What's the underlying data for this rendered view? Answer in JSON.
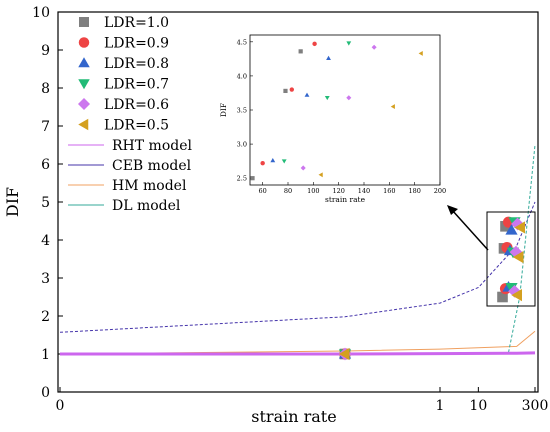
{
  "chart_data": {
    "type": "scatter",
    "title": "",
    "xlabel": "strain rate",
    "ylabel": "DIF",
    "ylim": [
      0,
      10
    ],
    "y_ticks": [
      "0",
      "1",
      "2",
      "3",
      "4",
      "5",
      "6",
      "7",
      "8",
      "9",
      "10"
    ],
    "x_ticks": [
      {
        "label": "0",
        "value": 0
      },
      {
        "label": "1",
        "value": 1
      },
      {
        "label": "10",
        "value": 10
      },
      {
        "label": "300",
        "value": 300
      }
    ],
    "x_scale": "broken-log",
    "legend_position": "top-left",
    "series": [
      {
        "name": "LDR=1.0",
        "marker": "square",
        "color": "#7f7f7f",
        "points": [
          [
            0.0001,
            1.0
          ],
          [
            52,
            2.5
          ],
          [
            78,
            3.78
          ],
          [
            90,
            4.36
          ]
        ]
      },
      {
        "name": "LDR=0.9",
        "marker": "circle",
        "color": "#ee4444",
        "points": [
          [
            0.0001,
            1.0
          ],
          [
            60,
            2.72
          ],
          [
            83,
            3.8
          ],
          [
            101,
            4.47
          ]
        ]
      },
      {
        "name": "LDR=0.8",
        "marker": "triangle-up",
        "color": "#3366cc",
        "points": [
          [
            0.0001,
            1.0
          ],
          [
            68,
            2.76
          ],
          [
            95,
            3.72
          ],
          [
            112,
            4.26
          ]
        ]
      },
      {
        "name": "LDR=0.7",
        "marker": "triangle-down",
        "color": "#22bb77",
        "points": [
          [
            0.0001,
            1.0
          ],
          [
            77,
            2.75
          ],
          [
            111,
            3.68
          ],
          [
            128,
            4.48
          ]
        ]
      },
      {
        "name": "LDR=0.6",
        "marker": "diamond",
        "color": "#cc77ee",
        "points": [
          [
            0.0001,
            1.0
          ],
          [
            92,
            2.65
          ],
          [
            128,
            3.68
          ],
          [
            148,
            4.42
          ]
        ]
      },
      {
        "name": "LDR=0.5",
        "marker": "triangle-left",
        "color": "#d4a020",
        "points": [
          [
            0.0001,
            1.0
          ],
          [
            106,
            2.55
          ],
          [
            163,
            3.55
          ],
          [
            185,
            4.33
          ]
        ]
      }
    ],
    "models": [
      {
        "name": "RHT model",
        "color": "#cc66ee"
      },
      {
        "name": "CEB model",
        "color": "#4433aa"
      },
      {
        "name": "HM model",
        "color": "#f0a060"
      },
      {
        "name": "DL model",
        "color": "#33aa99"
      }
    ],
    "inset": {
      "xlabel": "strain rate",
      "ylabel": "DIF",
      "xlim": [
        50,
        200
      ],
      "ylim": [
        2.4,
        4.6
      ],
      "x_ticks": [
        "60",
        "80",
        "100",
        "120",
        "140",
        "160",
        "180",
        "200"
      ],
      "y_ticks": [
        "2.5",
        "3.0",
        "3.5",
        "4.0",
        "4.5"
      ]
    }
  }
}
